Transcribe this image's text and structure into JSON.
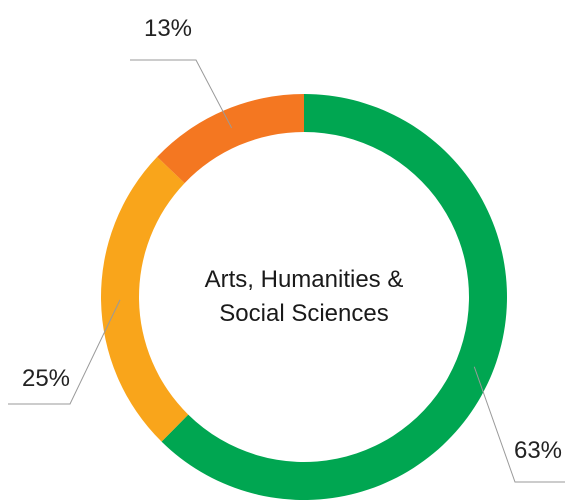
{
  "chart_data": {
    "type": "pie",
    "donut": true,
    "center_label": [
      "Arts, Humanities &",
      "Social Sciences"
    ],
    "slices": [
      {
        "value": 63,
        "label": "63%",
        "color": "#00a651"
      },
      {
        "value": 25,
        "label": "25%",
        "color": "#f9a51b"
      },
      {
        "value": 13,
        "label": "13%",
        "color": "#f47721"
      }
    ]
  }
}
